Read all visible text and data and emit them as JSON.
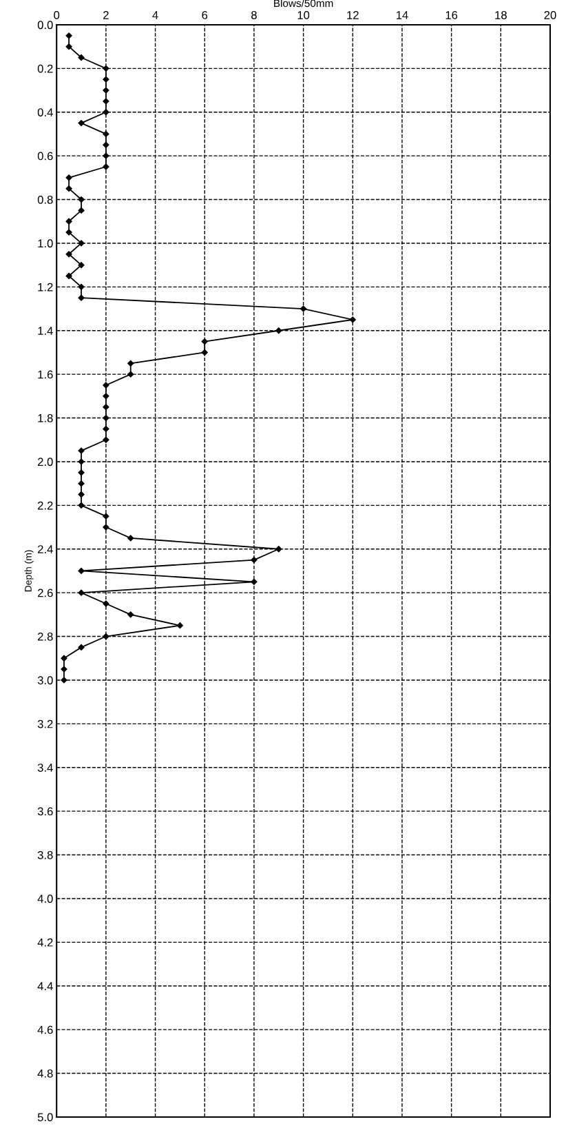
{
  "chart_data": {
    "type": "line",
    "xlabel": "Blows/50mm",
    "ylabel": "Depth (m)",
    "series": [
      {
        "color": "#000000",
        "x": [
          0.5,
          0.5,
          1,
          2,
          2,
          2,
          2,
          2,
          1,
          2,
          2,
          2,
          2,
          0.5,
          0.5,
          1,
          1,
          0.5,
          0.5,
          1,
          0.5,
          1,
          0.5,
          1,
          1,
          10,
          12,
          9,
          6,
          6,
          3,
          3,
          2,
          2,
          2,
          2,
          2,
          2,
          1,
          1,
          1,
          1,
          1,
          1,
          2,
          2,
          3,
          9,
          8,
          1,
          8,
          1,
          2,
          3,
          5,
          2,
          1,
          0.3,
          0.3,
          0.3
        ],
        "values": [
          0.05,
          0.1,
          0.15,
          0.2,
          0.25,
          0.3,
          0.35,
          0.4,
          0.45,
          0.5,
          0.55,
          0.6,
          0.65,
          0.7,
          0.75,
          0.8,
          0.85,
          0.9,
          0.95,
          1.0,
          1.05,
          1.1,
          1.15,
          1.2,
          1.25,
          1.3,
          1.35,
          1.4,
          1.45,
          1.5,
          1.55,
          1.6,
          1.65,
          1.7,
          1.75,
          1.8,
          1.85,
          1.9,
          1.95,
          2.0,
          2.05,
          2.1,
          2.15,
          2.2,
          2.25,
          2.3,
          2.35,
          2.4,
          2.45,
          2.5,
          2.55,
          2.6,
          2.65,
          2.7,
          2.75,
          2.8,
          2.85,
          2.9,
          2.95,
          3.0
        ]
      }
    ],
    "xlim": [
      0,
      20
    ],
    "xticks": [
      0,
      2,
      4,
      6,
      8,
      10,
      12,
      14,
      16,
      18,
      20
    ],
    "ylim": [
      5,
      0
    ],
    "yticks": [
      {
        "value": 0,
        "label": "0.0"
      },
      0.2,
      0.4,
      0.6,
      0.8,
      {
        "value": 1,
        "label": "1.0"
      },
      1.2,
      1.4,
      1.6,
      1.8,
      {
        "value": 2,
        "label": "2.0"
      },
      2.2,
      2.4,
      2.6,
      2.8,
      {
        "value": 3,
        "label": "3.0"
      },
      3.2,
      3.4,
      3.6,
      3.8,
      {
        "value": 4,
        "label": "4.0"
      },
      4.2,
      4.4,
      4.6,
      4.8,
      {
        "value": 5,
        "label": "5.0"
      }
    ],
    "grid": true,
    "marker": "diamond",
    "line_style": "solid"
  }
}
